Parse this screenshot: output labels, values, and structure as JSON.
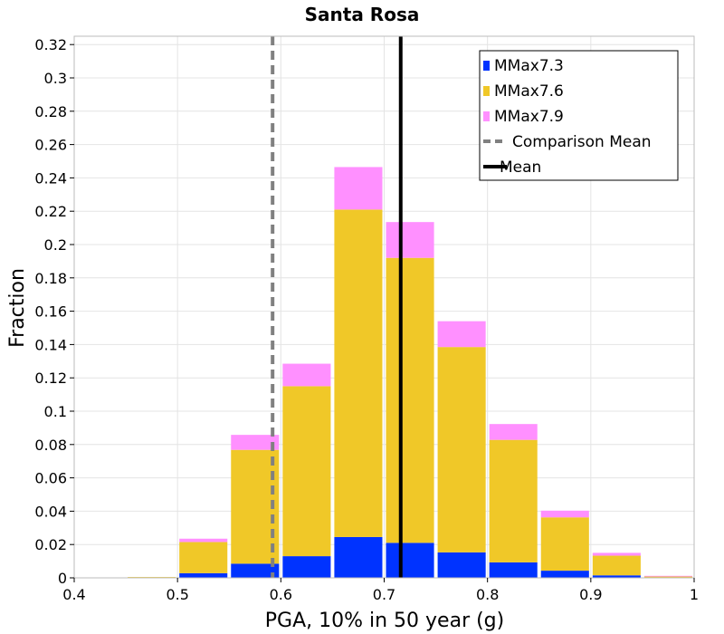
{
  "chart_data": {
    "type": "bar",
    "stacked": true,
    "title": "Santa Rosa",
    "xlabel": "PGA, 10% in 50 year (g)",
    "ylabel": "Fraction",
    "xlim": [
      0.4,
      1.0
    ],
    "ylim": [
      0,
      0.325
    ],
    "bin_width": 0.05,
    "x_ticks": [
      "0.4",
      "0.5",
      "0.6",
      "0.7",
      "0.8",
      "0.9",
      "1"
    ],
    "y_ticks": [
      "0",
      "0.02",
      "0.04",
      "0.06",
      "0.08",
      "0.1",
      "0.12",
      "0.14",
      "0.16",
      "0.18",
      "0.2",
      "0.22",
      "0.24",
      "0.26",
      "0.28",
      "0.3",
      "0.32"
    ],
    "bin_centers": [
      0.425,
      0.475,
      0.525,
      0.575,
      0.625,
      0.675,
      0.725,
      0.775,
      0.825,
      0.875,
      0.925,
      0.975
    ],
    "series": [
      {
        "name": "MMax7.3",
        "color": "#0033ff",
        "values": [
          0.0,
          0.0,
          0.0028,
          0.0085,
          0.013,
          0.0245,
          0.021,
          0.0153,
          0.0093,
          0.0043,
          0.0015,
          0.0002
        ]
      },
      {
        "name": "MMax7.6",
        "color": "#f0c828",
        "values": [
          0.0002,
          0.0005,
          0.0187,
          0.0683,
          0.102,
          0.1965,
          0.171,
          0.1232,
          0.0735,
          0.032,
          0.0118,
          0.0008
        ]
      },
      {
        "name": "MMax7.9",
        "color": "#ff90ff",
        "values": [
          0.0,
          0.0,
          0.002,
          0.009,
          0.0135,
          0.0255,
          0.0215,
          0.0155,
          0.0095,
          0.004,
          0.0017,
          0.0002
        ]
      }
    ],
    "lines": [
      {
        "name": "Comparison Mean",
        "x": 0.592,
        "style": "dashed",
        "color": "#808080"
      },
      {
        "name": "Mean",
        "x": 0.716,
        "style": "solid",
        "color": "#000000"
      }
    ],
    "legend_position": "top-right",
    "grid": true
  }
}
